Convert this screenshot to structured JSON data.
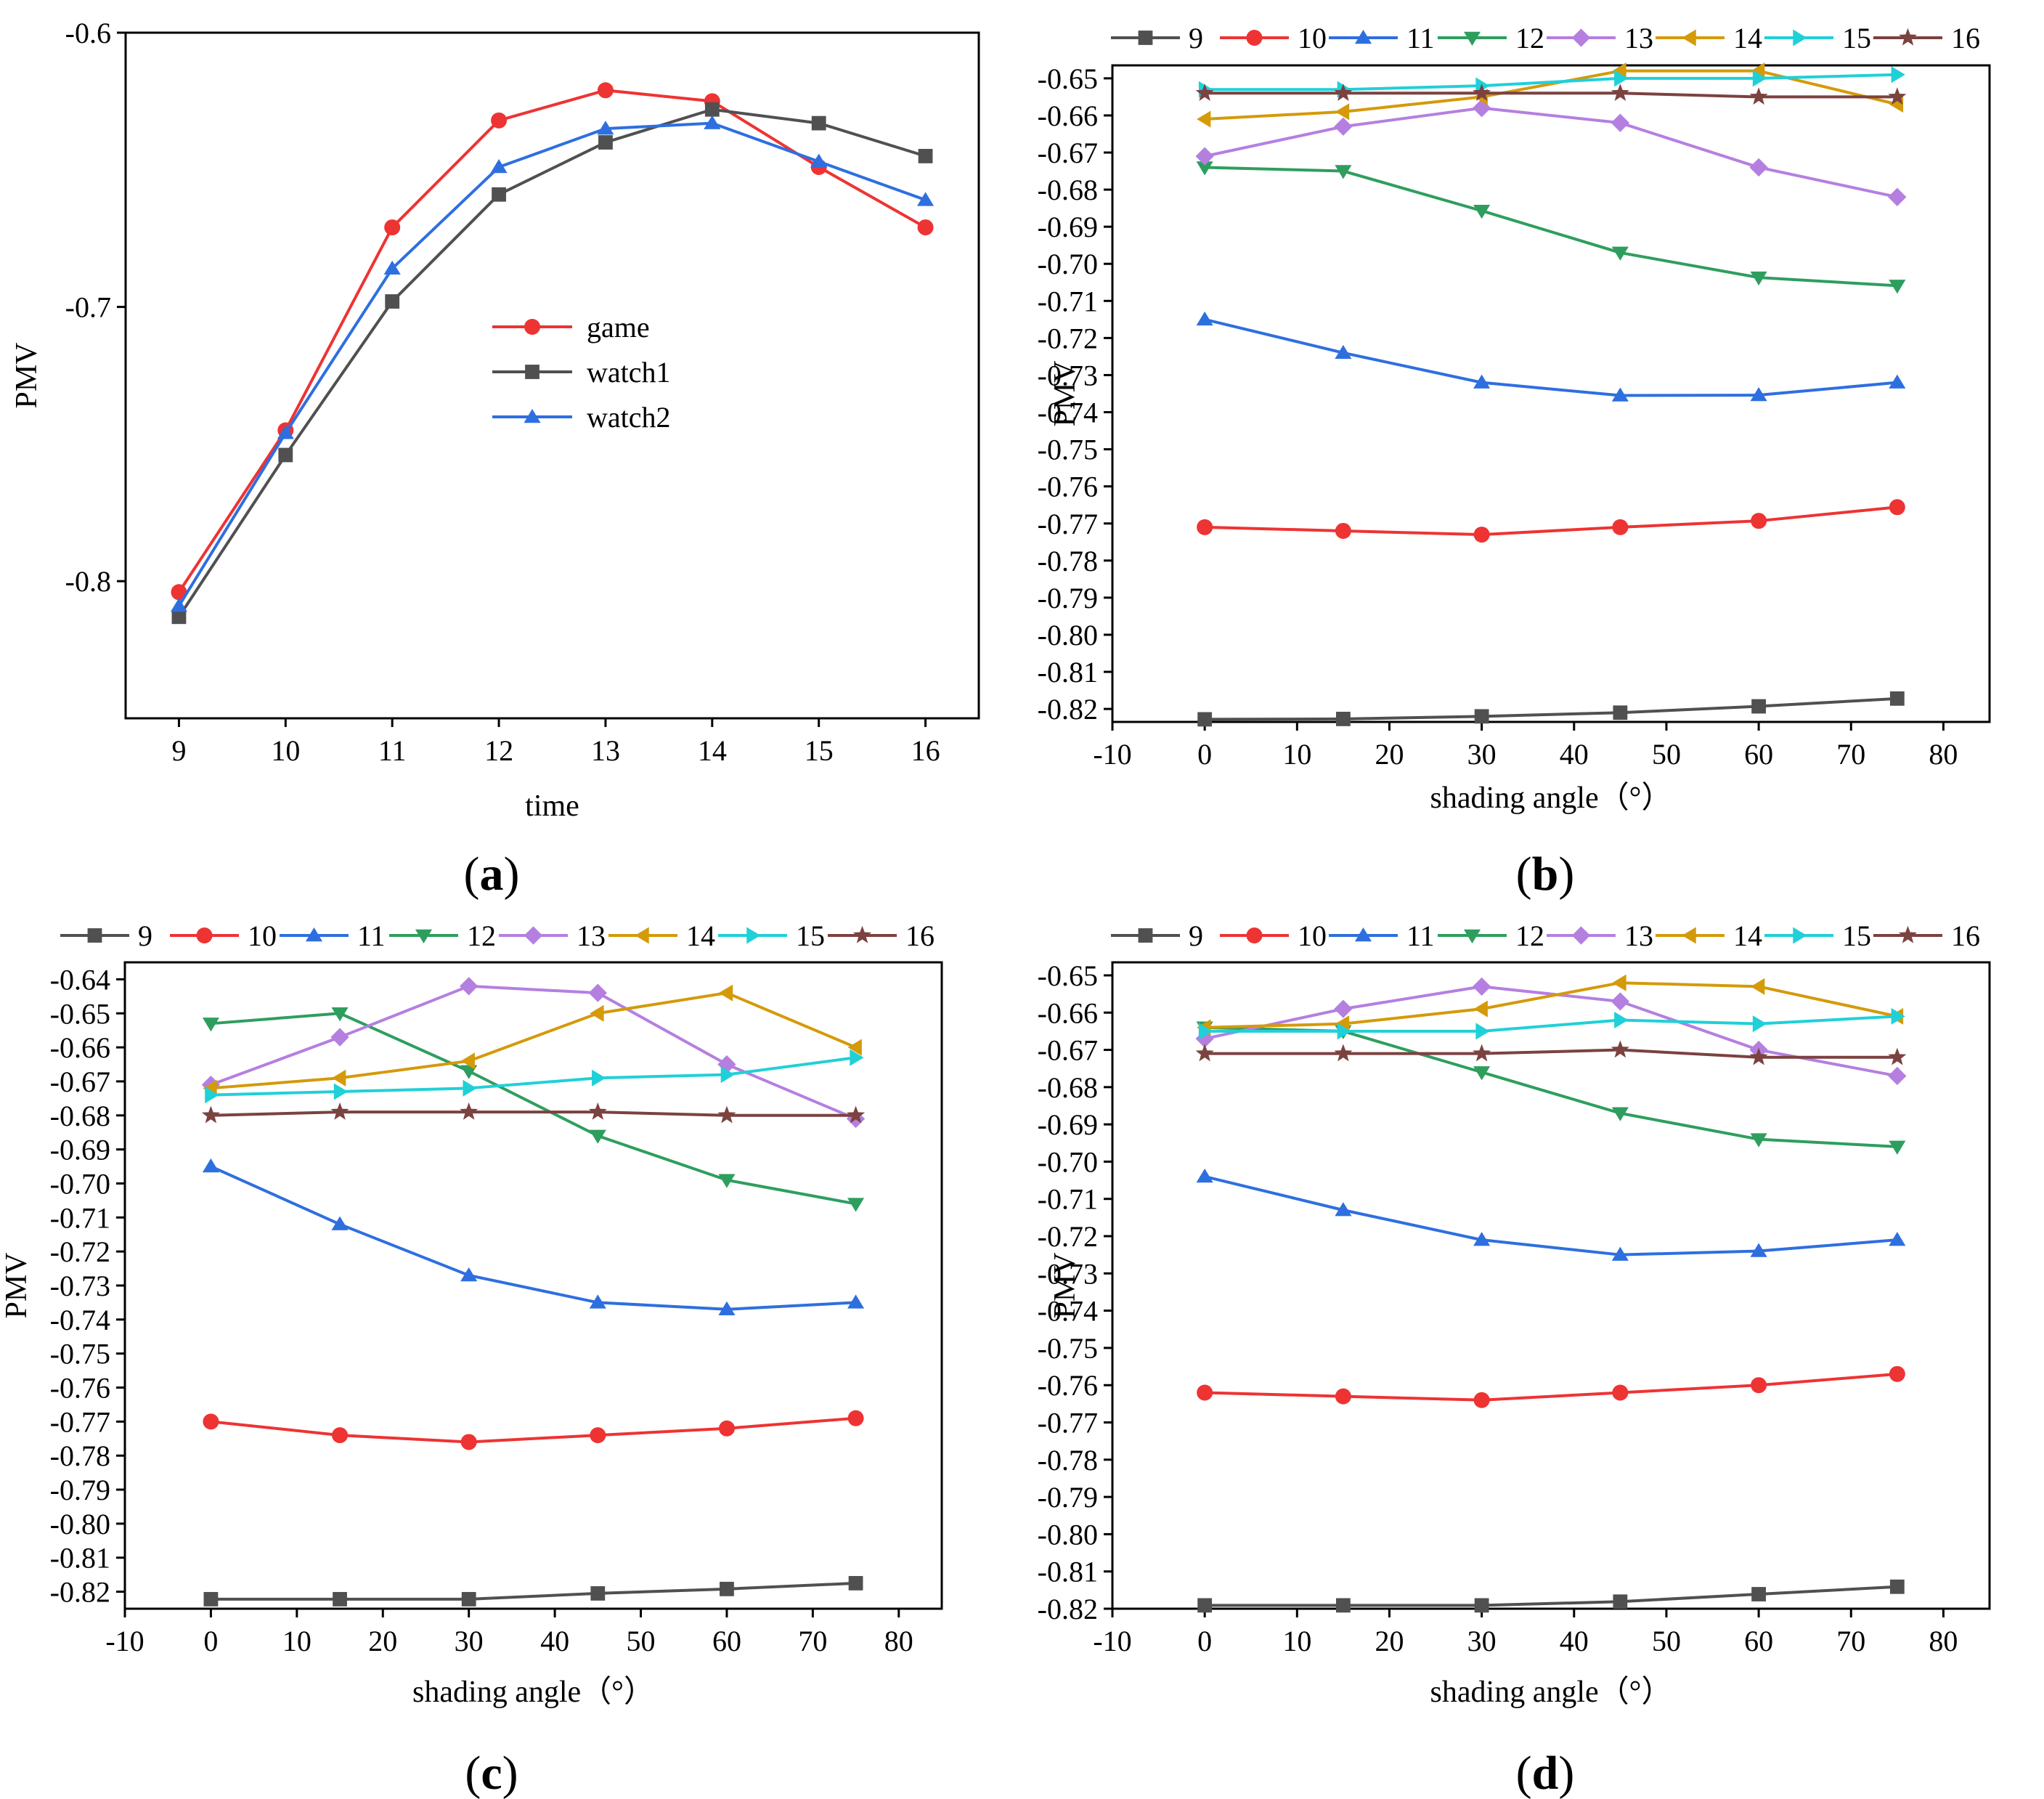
{
  "colors": {
    "9": "#505050",
    "10": "#ee3333",
    "11": "#2e6fe0",
    "12": "#2e9e5e",
    "13": "#b57fe0",
    "14": "#d49a0a",
    "15": "#20d0d8",
    "16": "#7b4240",
    "game": "#ee3333",
    "watch1": "#505050",
    "watch2": "#2e6fe0"
  },
  "chart_data": [
    {
      "id": "a",
      "panel_label": "a",
      "type": "line",
      "title": "",
      "xlabel": "time",
      "ylabel": "PMV",
      "xlim": [
        8.5,
        16.5
      ],
      "ylim": [
        -0.85,
        -0.6
      ],
      "xticks": [
        9,
        10,
        11,
        12,
        13,
        14,
        15,
        16
      ],
      "xtick_labels": [
        "9",
        "10",
        "11",
        "12",
        "13",
        "14",
        "15",
        "16"
      ],
      "yticks": [
        -0.6,
        -0.7,
        -0.8
      ],
      "ytick_labels": [
        "-0.6",
        "-0.7",
        "-0.8"
      ],
      "legend_position": "center-right",
      "x": [
        9,
        10,
        11,
        12,
        13,
        14,
        15,
        16
      ],
      "series": [
        {
          "name": "game",
          "marker": "circle",
          "values": [
            -0.804,
            -0.745,
            -0.671,
            -0.632,
            -0.621,
            -0.625,
            -0.649,
            -0.671
          ]
        },
        {
          "name": "watch1",
          "marker": "square",
          "values": [
            -0.813,
            -0.754,
            -0.698,
            -0.659,
            -0.64,
            -0.628,
            -0.633,
            -0.645
          ]
        },
        {
          "name": "watch2",
          "marker": "triangle-up",
          "values": [
            -0.809,
            -0.746,
            -0.686,
            -0.649,
            -0.635,
            -0.633,
            -0.647,
            -0.661
          ]
        }
      ]
    },
    {
      "id": "b",
      "panel_label": "b",
      "type": "line",
      "title": "",
      "xlabel": "shading angle（°）",
      "ylabel": "PMV",
      "xlim": [
        -10,
        85
      ],
      "ylim": [
        -0.8235,
        -0.6465
      ],
      "xticks": [
        -10,
        0,
        10,
        20,
        30,
        40,
        50,
        60,
        70,
        80
      ],
      "xtick_labels": [
        "-10",
        "0",
        "10",
        "20",
        "30",
        "40",
        "50",
        "60",
        "70",
        "80"
      ],
      "yticks": [
        -0.65,
        -0.66,
        -0.67,
        -0.68,
        -0.69,
        -0.7,
        -0.71,
        -0.72,
        -0.73,
        -0.74,
        -0.75,
        -0.76,
        -0.77,
        -0.78,
        -0.79,
        -0.8,
        -0.81,
        -0.82
      ],
      "ytick_labels": [
        "-0.65",
        "-0.66",
        "-0.67",
        "-0.68",
        "-0.69",
        "-0.70",
        "-0.71",
        "-0.72",
        "-0.73",
        "-0.74",
        "-0.75",
        "-0.76",
        "-0.77",
        "-0.78",
        "-0.79",
        "-0.80",
        "-0.81",
        "-0.82"
      ],
      "legend_position": "top",
      "x": [
        0,
        15,
        30,
        45,
        60,
        75
      ],
      "series": [
        {
          "name": "9",
          "marker": "square",
          "values": [
            -0.8228,
            -0.8227,
            -0.822,
            -0.821,
            -0.8193,
            -0.8172
          ]
        },
        {
          "name": "10",
          "marker": "circle",
          "values": [
            -0.771,
            -0.772,
            -0.773,
            -0.771,
            -0.7693,
            -0.7656
          ]
        },
        {
          "name": "11",
          "marker": "triangle-up",
          "values": [
            -0.715,
            -0.724,
            -0.732,
            -0.7355,
            -0.7354,
            -0.732
          ]
        },
        {
          "name": "12",
          "marker": "triangle-down",
          "values": [
            -0.674,
            -0.675,
            -0.6857,
            -0.697,
            -0.7037,
            -0.7059
          ]
        },
        {
          "name": "13",
          "marker": "diamond",
          "values": [
            -0.671,
            -0.663,
            -0.658,
            -0.662,
            -0.674,
            -0.682
          ]
        },
        {
          "name": "14",
          "marker": "triangle-left",
          "values": [
            -0.661,
            -0.659,
            -0.655,
            -0.648,
            -0.648,
            -0.657
          ]
        },
        {
          "name": "15",
          "marker": "triangle-right",
          "values": [
            -0.653,
            -0.653,
            -0.652,
            -0.65,
            -0.65,
            -0.649
          ]
        },
        {
          "name": "16",
          "marker": "star",
          "values": [
            -0.654,
            -0.654,
            -0.654,
            -0.654,
            -0.655,
            -0.655
          ]
        }
      ]
    },
    {
      "id": "c",
      "panel_label": "c",
      "type": "line",
      "title": "",
      "xlabel": "shading angle（°）",
      "ylabel": "PMV",
      "xlim": [
        -10,
        85
      ],
      "ylim": [
        -0.825,
        -0.635
      ],
      "xticks": [
        -10,
        0,
        10,
        20,
        30,
        40,
        50,
        60,
        70,
        80
      ],
      "xtick_labels": [
        "-10",
        "0",
        "10",
        "20",
        "30",
        "40",
        "50",
        "60",
        "70",
        "80"
      ],
      "yticks": [
        -0.64,
        -0.65,
        -0.66,
        -0.67,
        -0.68,
        -0.69,
        -0.7,
        -0.71,
        -0.72,
        -0.73,
        -0.74,
        -0.75,
        -0.76,
        -0.77,
        -0.78,
        -0.79,
        -0.8,
        -0.81,
        -0.82
      ],
      "ytick_labels": [
        "-0.64",
        "-0.65",
        "-0.66",
        "-0.67",
        "-0.68",
        "-0.69",
        "-0.70",
        "-0.71",
        "-0.72",
        "-0.73",
        "-0.74",
        "-0.75",
        "-0.76",
        "-0.77",
        "-0.78",
        "-0.79",
        "-0.80",
        "-0.81",
        "-0.82"
      ],
      "legend_position": "top",
      "x": [
        0,
        15,
        30,
        45,
        60,
        75
      ],
      "series": [
        {
          "name": "9",
          "marker": "square",
          "values": [
            -0.8222,
            -0.8222,
            -0.8222,
            -0.8205,
            -0.8192,
            -0.8175
          ]
        },
        {
          "name": "10",
          "marker": "circle",
          "values": [
            -0.77,
            -0.774,
            -0.776,
            -0.774,
            -0.772,
            -0.769
          ]
        },
        {
          "name": "11",
          "marker": "triangle-up",
          "values": [
            -0.695,
            -0.712,
            -0.727,
            -0.735,
            -0.737,
            -0.735
          ]
        },
        {
          "name": "12",
          "marker": "triangle-down",
          "values": [
            -0.653,
            -0.65,
            -0.667,
            -0.686,
            -0.699,
            -0.706
          ]
        },
        {
          "name": "13",
          "marker": "diamond",
          "values": [
            -0.671,
            -0.657,
            -0.642,
            -0.644,
            -0.665,
            -0.681
          ]
        },
        {
          "name": "14",
          "marker": "triangle-left",
          "values": [
            -0.672,
            -0.669,
            -0.664,
            -0.65,
            -0.644,
            -0.66
          ]
        },
        {
          "name": "15",
          "marker": "triangle-right",
          "values": [
            -0.674,
            -0.673,
            -0.672,
            -0.669,
            -0.668,
            -0.663
          ]
        },
        {
          "name": "16",
          "marker": "star",
          "values": [
            -0.68,
            -0.679,
            -0.679,
            -0.679,
            -0.68,
            -0.68
          ]
        }
      ]
    },
    {
      "id": "d",
      "panel_label": "d",
      "type": "line",
      "title": "",
      "xlabel": "shading angle（°）",
      "ylabel": "PMV",
      "xlim": [
        -10,
        85
      ],
      "ylim": [
        -0.82,
        -0.6465
      ],
      "xticks": [
        -10,
        0,
        10,
        20,
        30,
        40,
        50,
        60,
        70,
        80
      ],
      "xtick_labels": [
        "-10",
        "0",
        "10",
        "20",
        "30",
        "40",
        "50",
        "60",
        "70",
        "80"
      ],
      "yticks": [
        -0.65,
        -0.66,
        -0.67,
        -0.68,
        -0.69,
        -0.7,
        -0.71,
        -0.72,
        -0.73,
        -0.74,
        -0.75,
        -0.76,
        -0.77,
        -0.78,
        -0.79,
        -0.8,
        -0.81,
        -0.82
      ],
      "ytick_labels": [
        "-0.65",
        "-0.66",
        "-0.67",
        "-0.68",
        "-0.69",
        "-0.70",
        "-0.71",
        "-0.72",
        "-0.73",
        "-0.74",
        "-0.75",
        "-0.76",
        "-0.77",
        "-0.78",
        "-0.79",
        "-0.80",
        "-0.81",
        "-0.82"
      ],
      "legend_position": "top",
      "x": [
        0,
        15,
        30,
        45,
        60,
        75
      ],
      "series": [
        {
          "name": "9",
          "marker": "square",
          "values": [
            -0.8191,
            -0.8191,
            -0.8191,
            -0.8181,
            -0.8161,
            -0.8141
          ]
        },
        {
          "name": "10",
          "marker": "circle",
          "values": [
            -0.762,
            -0.763,
            -0.764,
            -0.762,
            -0.76,
            -0.757
          ]
        },
        {
          "name": "11",
          "marker": "triangle-up",
          "values": [
            -0.704,
            -0.713,
            -0.721,
            -0.725,
            -0.724,
            -0.721
          ]
        },
        {
          "name": "12",
          "marker": "triangle-down",
          "values": [
            -0.664,
            -0.665,
            -0.676,
            -0.687,
            -0.694,
            -0.696
          ]
        },
        {
          "name": "13",
          "marker": "diamond",
          "values": [
            -0.667,
            -0.659,
            -0.653,
            -0.657,
            -0.67,
            -0.677
          ]
        },
        {
          "name": "14",
          "marker": "triangle-left",
          "values": [
            -0.664,
            -0.663,
            -0.659,
            -0.652,
            -0.653,
            -0.661
          ]
        },
        {
          "name": "15",
          "marker": "triangle-right",
          "values": [
            -0.665,
            -0.665,
            -0.665,
            -0.662,
            -0.663,
            -0.661
          ]
        },
        {
          "name": "16",
          "marker": "star",
          "values": [
            -0.671,
            -0.671,
            -0.671,
            -0.67,
            -0.672,
            -0.672
          ]
        }
      ]
    }
  ]
}
